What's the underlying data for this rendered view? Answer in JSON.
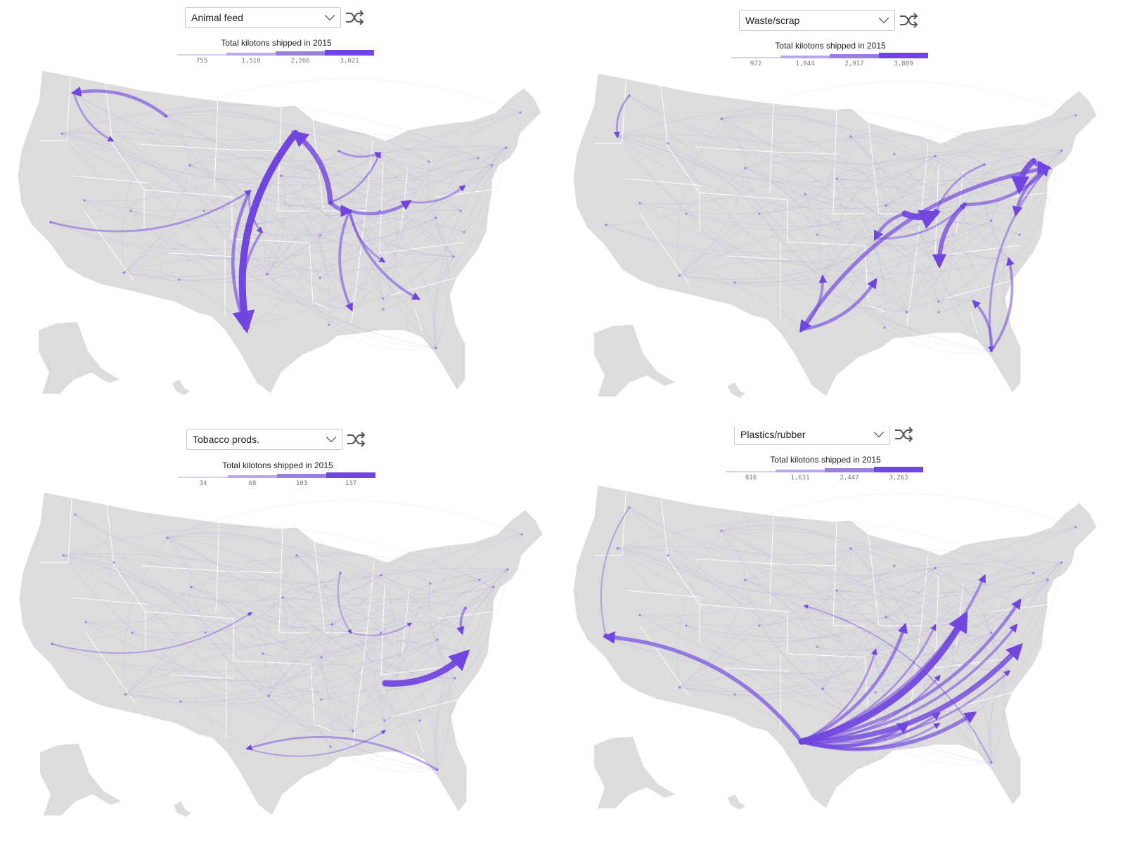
{
  "legend_title": "Total kilotons shipped in 2015",
  "colors": {
    "land": "#dcdcdc",
    "border": "#ffffff",
    "flow": "#7045e0",
    "legend_scale": [
      "#d6cdf3",
      "#b9a7ef",
      "#9a7ee8",
      "#7045e0"
    ]
  },
  "icons": {
    "dropdown": "chevron-down-icon",
    "shuffle": "shuffle-icon"
  },
  "panels": [
    {
      "commodity": "Animal feed",
      "legend_ticks": [
        "755",
        "1,510",
        "2,266",
        "3,021"
      ],
      "flows": [
        {
          "from": "ND",
          "to": "TX",
          "w": 10
        },
        {
          "from": "IA",
          "to": "ND",
          "w": 7
        },
        {
          "from": "IA",
          "to": "IL",
          "w": 5
        },
        {
          "from": "IL",
          "to": "OH",
          "w": 4
        },
        {
          "from": "MT",
          "to": "WA",
          "w": 4
        },
        {
          "from": "NE",
          "to": "TX",
          "w": 4
        },
        {
          "from": "IL",
          "to": "MS",
          "w": 3
        },
        {
          "from": "IL",
          "to": "GA",
          "w": 3
        },
        {
          "from": "KS",
          "to": "TX",
          "w": 3
        },
        {
          "from": "WA",
          "to": "ID",
          "w": 2
        },
        {
          "from": "CA",
          "to": "NE",
          "w": 2
        },
        {
          "from": "IA",
          "to": "WI",
          "w": 2
        },
        {
          "from": "OH",
          "to": "PA",
          "w": 2
        },
        {
          "from": "MN",
          "to": "WI",
          "w": 2
        },
        {
          "from": "IL",
          "to": "KY",
          "w": 2
        },
        {
          "from": "NE",
          "to": "KS",
          "w": 2
        }
      ]
    },
    {
      "commodity": "Waste/scrap",
      "legend_ticks": [
        "972",
        "1,944",
        "2,917",
        "3,889"
      ],
      "flows": [
        {
          "from": "IL",
          "to": "IN",
          "w": 9
        },
        {
          "from": "NY",
          "to": "PA",
          "w": 8
        },
        {
          "from": "NY",
          "to": "NJ",
          "w": 6
        },
        {
          "from": "OH",
          "to": "KY",
          "w": 6
        },
        {
          "from": "NJ",
          "to": "TX",
          "w": 5
        },
        {
          "from": "NJ",
          "to": "VA",
          "w": 4
        },
        {
          "from": "TX",
          "to": "AR",
          "w": 4
        },
        {
          "from": "IL",
          "to": "MO",
          "w": 4
        },
        {
          "from": "OH",
          "to": "NJ",
          "w": 4
        },
        {
          "from": "TX",
          "to": "OK",
          "w": 3
        },
        {
          "from": "FL",
          "to": "SC",
          "w": 3
        },
        {
          "from": "FL",
          "to": "GA",
          "w": 3
        },
        {
          "from": "NJ",
          "to": "FL",
          "w": 2
        },
        {
          "from": "WA",
          "to": "OR",
          "w": 2
        },
        {
          "from": "MI",
          "to": "IN",
          "w": 2
        },
        {
          "from": "MO",
          "to": "OH",
          "w": 2
        }
      ]
    },
    {
      "commodity": "Tobacco prods.",
      "legend_ticks": [
        "34",
        "68",
        "103",
        "137"
      ],
      "flows": [
        {
          "from": "KY",
          "to": "NC",
          "w": 9
        },
        {
          "from": "PA",
          "to": "VA",
          "w": 3
        },
        {
          "from": "FL",
          "to": "TX",
          "w": 2
        },
        {
          "from": "CA",
          "to": "NE",
          "w": 1
        },
        {
          "from": "IL",
          "to": "OH",
          "w": 1
        },
        {
          "from": "TX",
          "to": "AL",
          "w": 1
        },
        {
          "from": "MN",
          "to": "IL",
          "w": 1
        }
      ]
    },
    {
      "commodity": "Plastics/rubber",
      "legend_ticks": [
        "816",
        "1,631",
        "2,447",
        "3,263"
      ],
      "flows": [
        {
          "from": "TX",
          "to": "OH",
          "w": 9
        },
        {
          "from": "TX",
          "to": "NC",
          "w": 7
        },
        {
          "from": "TX",
          "to": "CA",
          "w": 5
        },
        {
          "from": "TX",
          "to": "GA",
          "w": 5
        },
        {
          "from": "TX",
          "to": "MS",
          "w": 5
        },
        {
          "from": "TX",
          "to": "PA",
          "w": 4
        },
        {
          "from": "TX",
          "to": "IL",
          "w": 4
        },
        {
          "from": "TX",
          "to": "TN",
          "w": 3
        },
        {
          "from": "TX",
          "to": "MI",
          "w": 3
        },
        {
          "from": "TX",
          "to": "VA",
          "w": 3
        },
        {
          "from": "TX",
          "to": "MO",
          "w": 2
        },
        {
          "from": "TX",
          "to": "IN",
          "w": 2
        },
        {
          "from": "TX",
          "to": "KY",
          "w": 2
        },
        {
          "from": "TX",
          "to": "AL",
          "w": 2
        },
        {
          "from": "TX",
          "to": "SC",
          "w": 2
        },
        {
          "from": "FL",
          "to": "NE",
          "w": 1
        },
        {
          "from": "WA",
          "to": "CA",
          "w": 1
        }
      ]
    }
  ]
}
